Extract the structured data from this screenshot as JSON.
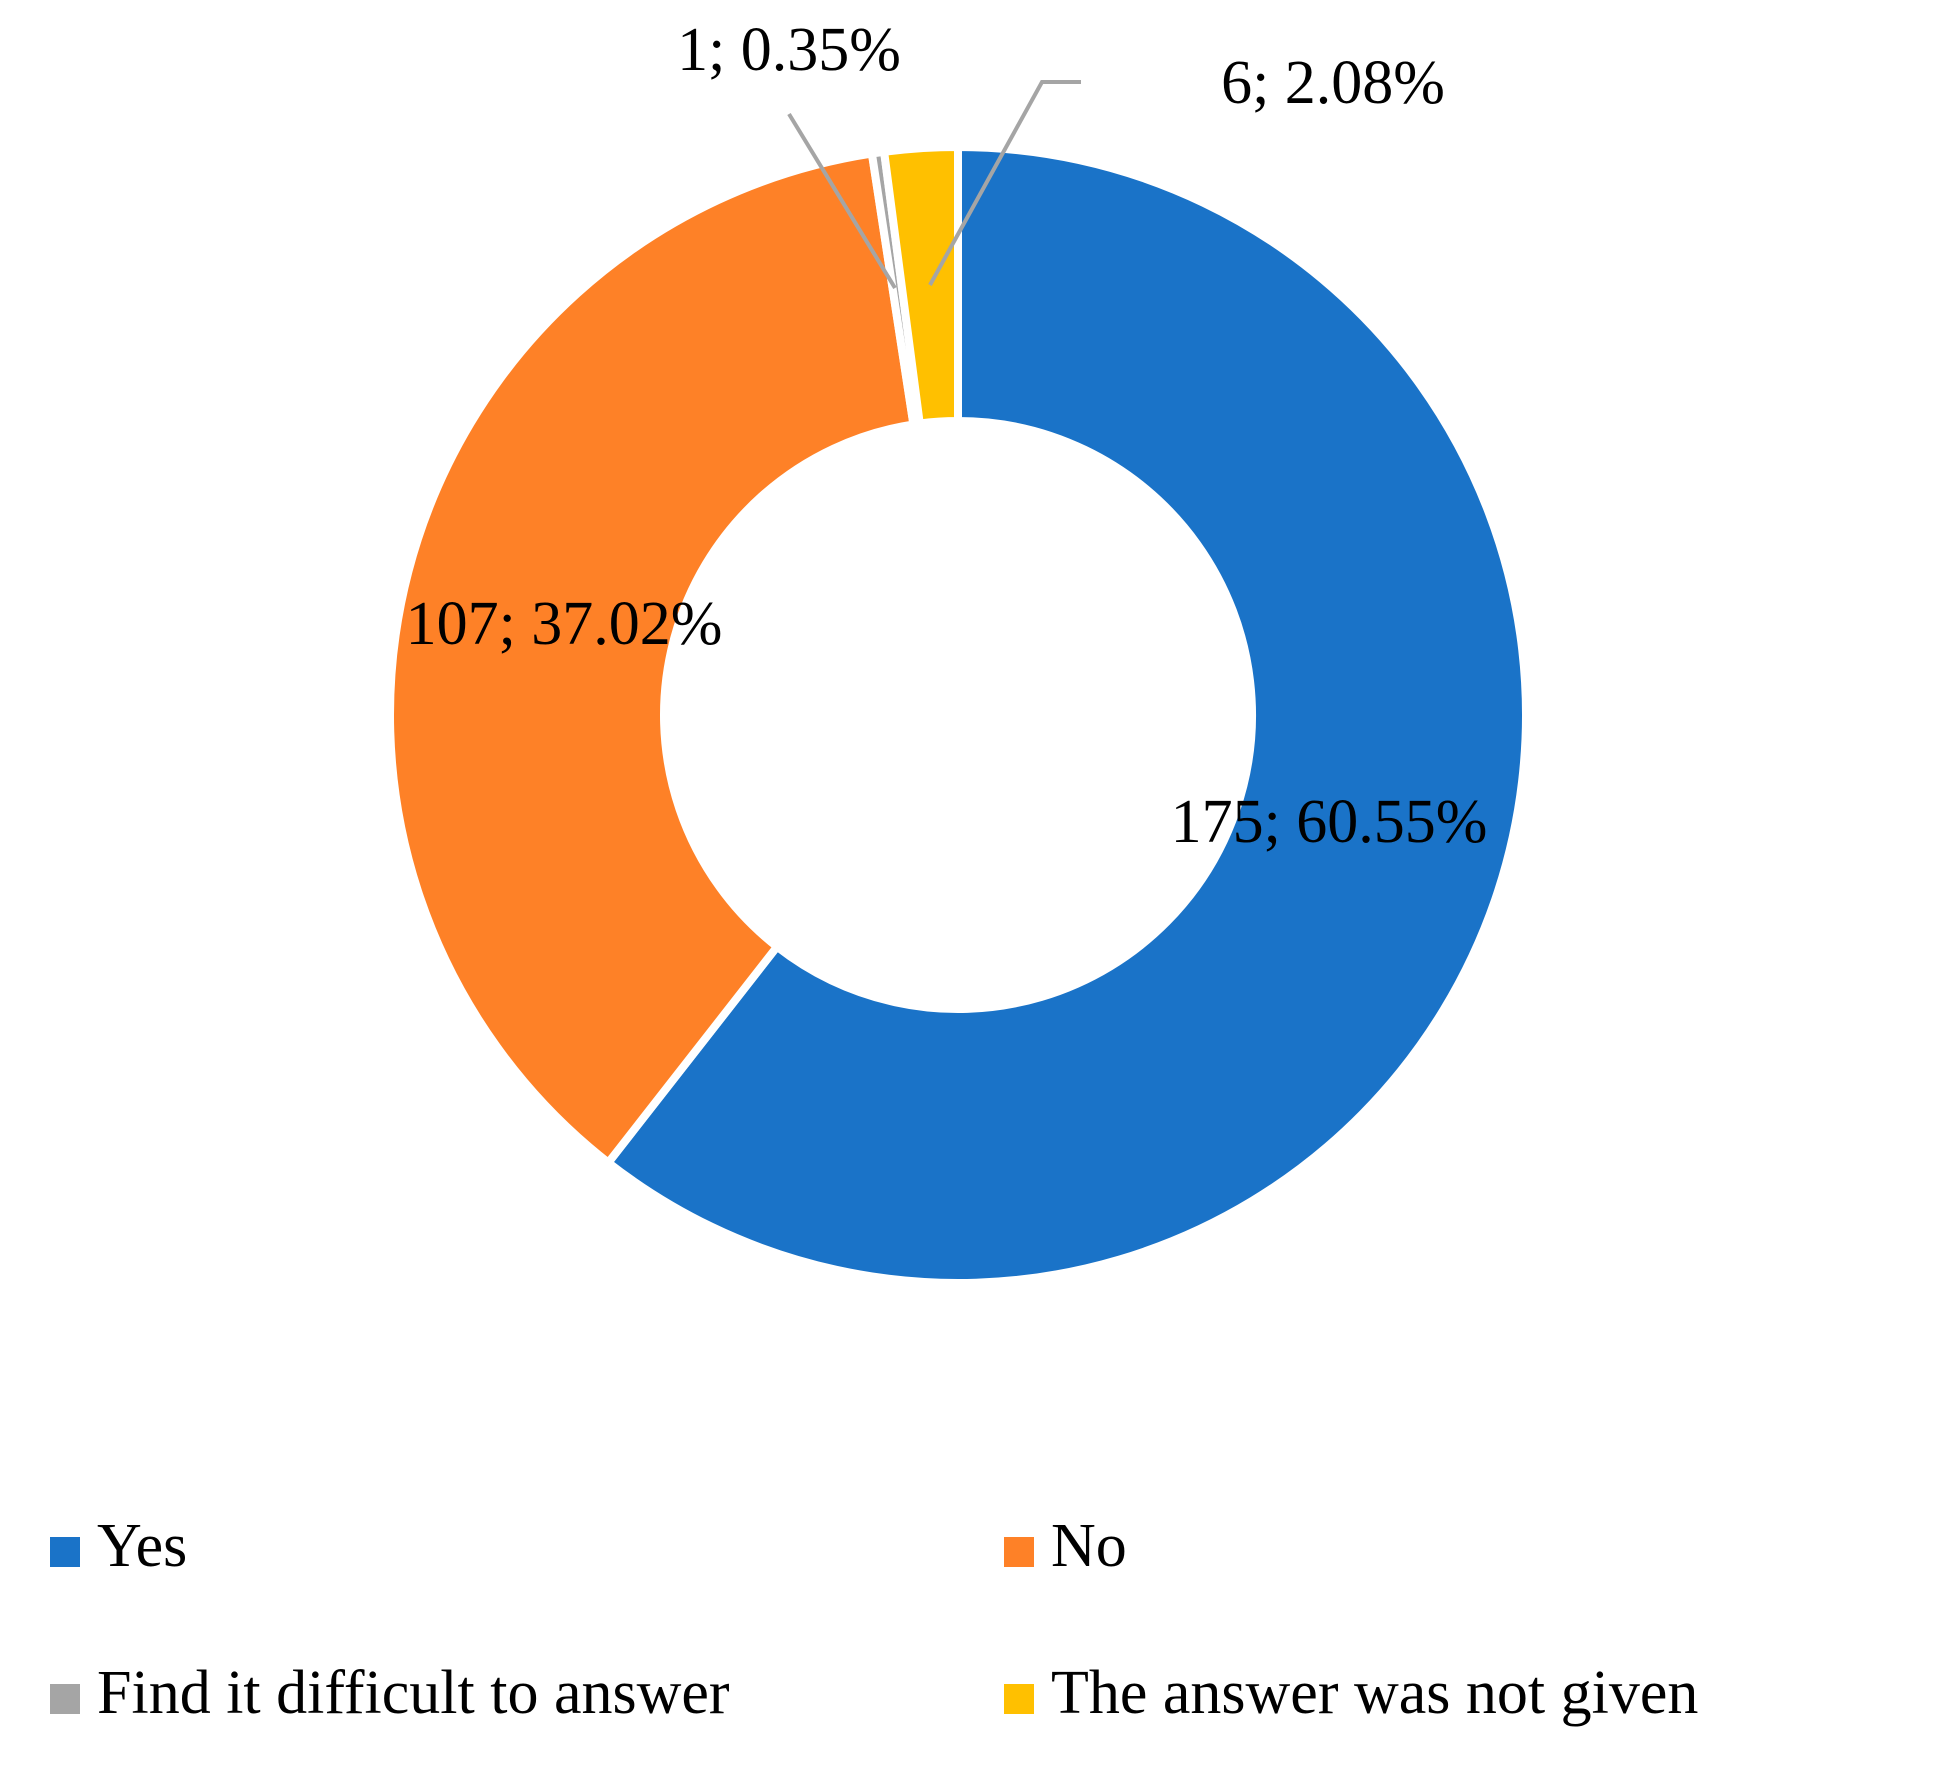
{
  "chart_data": {
    "type": "donut",
    "categories": [
      "Yes",
      "No",
      "Find it difficult to answer",
      "The answer was not given"
    ],
    "values": [
      175,
      107,
      1,
      6
    ],
    "value_labels": [
      "175; 60.55%",
      "107; 37.02%",
      "1; 0.35%",
      "6; 2.08%"
    ],
    "colors": [
      "#1a73c8",
      "#fe8127",
      "#a5a5a5",
      "#ffc000"
    ],
    "legend": "bottom"
  }
}
